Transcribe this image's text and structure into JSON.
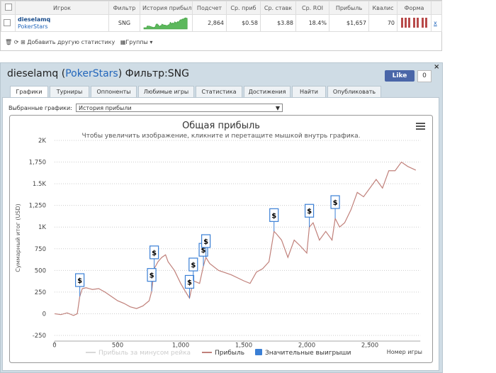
{
  "table": {
    "headers": [
      "Игрок",
      "Фильтр",
      "История прибыли",
      "Подсчет",
      "Ср. приб",
      "Ср. ставк",
      "Ср. ROI",
      "Прибыль",
      "Квалис",
      "Форма"
    ],
    "row": {
      "player": "dieselamq",
      "site": "PokerStars",
      "filter": "SNG",
      "count": "2,864",
      "avg_profit": "$0.58",
      "avg_stake": "$3.88",
      "roi": "18.4%",
      "profit": "$1,657",
      "qual": "70",
      "close": "x"
    }
  },
  "toolbar": {
    "add": "Добавить другую статистику",
    "groups": "Группы"
  },
  "panel": {
    "title": [
      "dieselamq ",
      "(",
      "PokerStars",
      ")",
      " Фильтр:SNG"
    ],
    "like": "Like",
    "like_count": "0",
    "tabs": [
      "Графики",
      "Турниры",
      "Оппоненты",
      "Любимые игры",
      "Статистика",
      "Достижения",
      "Найти",
      "Опубликовать"
    ],
    "select_label": "Выбранные графики:",
    "select_value": "История прибыли"
  },
  "chart_data": {
    "type": "line",
    "title": "Общая прибыль",
    "subtitle": "Чтобы увеличить изображение, кликните и перетащите мышкой внутрь графика.",
    "y_label": "Суммарный итог (USD)",
    "x_label": "Номер игры",
    "grid": true,
    "xlim": [
      0,
      2900
    ],
    "xticks": [
      0,
      500,
      {
        "value": 1000,
        "label": "1,000"
      },
      {
        "value": 1500,
        "label": "1,500"
      },
      {
        "value": 2000,
        "label": "2,000"
      },
      {
        "value": 2500,
        "label": "2,500"
      }
    ],
    "ylim": [
      -250,
      2000
    ],
    "yticks": [
      -250,
      0,
      250,
      500,
      750,
      {
        "value": 1000,
        "label": "1K"
      },
      {
        "value": 1250,
        "label": "1,250"
      },
      {
        "value": 1500,
        "label": "1.5K"
      },
      {
        "value": 1750,
        "label": "1,750"
      },
      {
        "value": 2000,
        "label": "2K"
      }
    ],
    "x": [
      0,
      50,
      100,
      150,
      180,
      200,
      220,
      250,
      300,
      350,
      400,
      450,
      500,
      550,
      600,
      650,
      700,
      750,
      770,
      790,
      820,
      850,
      880,
      900,
      950,
      1000,
      1040,
      1070,
      1100,
      1150,
      1180,
      1200,
      1230,
      1300,
      1400,
      1500,
      1550,
      1600,
      1650,
      1700,
      1740,
      1760,
      1800,
      1850,
      1900,
      1950,
      2000,
      2020,
      2050,
      2100,
      2150,
      2200,
      2225,
      2260,
      2300,
      2350,
      2400,
      2450,
      2500,
      2550,
      2600,
      2650,
      2700,
      2750,
      2800,
      2864
    ],
    "series": [
      {
        "name": "Прибыль за минусом рейка",
        "color": "#d8d8d8"
      },
      {
        "name": "Прибыль",
        "color": "#c0807a",
        "values": [
          0,
          -10,
          10,
          -20,
          0,
          200,
          290,
          300,
          280,
          290,
          250,
          200,
          150,
          120,
          80,
          60,
          90,
          150,
          260,
          520,
          600,
          650,
          680,
          600,
          500,
          350,
          250,
          180,
          380,
          350,
          550,
          650,
          580,
          500,
          450,
          380,
          350,
          480,
          520,
          600,
          950,
          920,
          850,
          650,
          850,
          780,
          700,
          1000,
          1050,
          850,
          950,
          850,
          1100,
          1000,
          1050,
          1200,
          1400,
          1350,
          1450,
          1550,
          1450,
          1650,
          1650,
          1750,
          1700,
          1657
        ]
      },
      {
        "name": "Значительные выигрыши",
        "color": "#3a7fd5",
        "label": "$",
        "x": [
          200,
          770,
          790,
          1070,
          1100,
          1180,
          1200,
          1740,
          2020,
          2225
        ]
      }
    ]
  }
}
